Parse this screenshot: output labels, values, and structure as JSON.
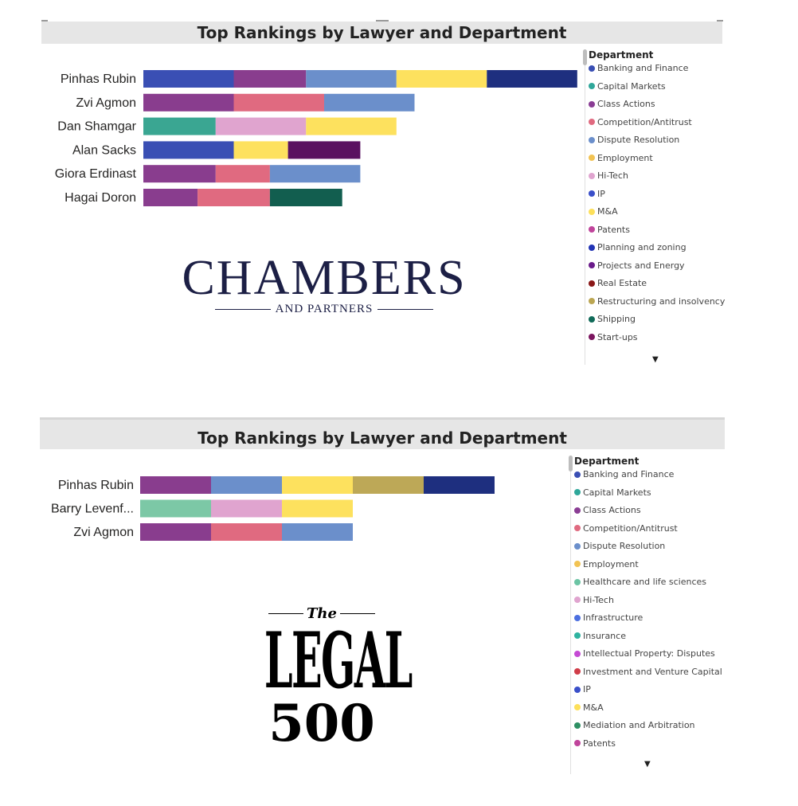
{
  "chart_data": [
    {
      "type": "bar",
      "orientation": "horizontal",
      "stacked": true,
      "title": "Top Rankings by Lawyer and Department",
      "legend_title": "Department",
      "legend_position": "right",
      "categories": [
        "Pinhas Rubin",
        "Zvi Agmon",
        "Dan Shamgar",
        "Alan Sacks",
        "Giora Erdinast",
        "Hagai Doron"
      ],
      "segments": [
        [
          {
            "dept": "Banking and Finance",
            "value": 1
          },
          {
            "dept": "Class Actions",
            "value": 0.8
          },
          {
            "dept": "Dispute Resolution",
            "value": 1
          },
          {
            "dept": "M&A",
            "value": 1
          },
          {
            "dept": "Planning and zoning",
            "value": 1
          }
        ],
        [
          {
            "dept": "Class Actions",
            "value": 1
          },
          {
            "dept": "Competition/Antitrust",
            "value": 1
          },
          {
            "dept": "Dispute Resolution",
            "value": 1
          }
        ],
        [
          {
            "dept": "Capital Markets",
            "value": 0.8
          },
          {
            "dept": "Hi-Tech",
            "value": 1
          },
          {
            "dept": "M&A",
            "value": 1
          }
        ],
        [
          {
            "dept": "Banking and Finance",
            "value": 1
          },
          {
            "dept": "M&A",
            "value": 0.6
          },
          {
            "dept": "Start-ups",
            "value": 0.8
          }
        ],
        [
          {
            "dept": "Class Actions",
            "value": 0.8
          },
          {
            "dept": "Competition/Antitrust",
            "value": 0.6
          },
          {
            "dept": "Dispute Resolution",
            "value": 1
          }
        ],
        [
          {
            "dept": "Class Actions",
            "value": 0.6
          },
          {
            "dept": "Competition/Antitrust",
            "value": 0.8
          },
          {
            "dept": "Shipping",
            "value": 0.8
          }
        ]
      ],
      "legend": [
        {
          "label": "Banking and Finance",
          "color": "#3a4fb4"
        },
        {
          "label": "Capital Markets",
          "color": "#2fa79a"
        },
        {
          "label": "Class Actions",
          "color": "#8a3d94"
        },
        {
          "label": "Competition/Antitrust",
          "color": "#e06a80"
        },
        {
          "label": "Dispute Resolution",
          "color": "#6b8fcb"
        },
        {
          "label": "Employment",
          "color": "#f2c353"
        },
        {
          "label": "Hi-Tech",
          "color": "#e0a4cf"
        },
        {
          "label": "IP",
          "color": "#3a4fc9"
        },
        {
          "label": "M&A",
          "color": "#fde05a"
        },
        {
          "label": "Patents",
          "color": "#c0449b"
        },
        {
          "label": "Planning and zoning",
          "color": "#2234b5"
        },
        {
          "label": "Projects and Energy",
          "color": "#6a1b8a"
        },
        {
          "label": "Real Estate",
          "color": "#8a1818"
        },
        {
          "label": "Restructuring and insolvency",
          "color": "#bba652"
        },
        {
          "label": "Shipping",
          "color": "#106a58"
        },
        {
          "label": "Start-ups",
          "color": "#7b155f"
        }
      ],
      "segment_colors": {
        "Planning and zoning": "#1e2f7f",
        "Start-ups": "#5a1160",
        "Capital Markets": "#3aa692",
        "Shipping": "#125e4f",
        "M&A": "#fde15e",
        "Class Actions": "#893d8e"
      }
    },
    {
      "type": "bar",
      "orientation": "horizontal",
      "stacked": true,
      "title": "Top Rankings by Lawyer and Department",
      "legend_title": "Department",
      "legend_position": "right",
      "categories": [
        "Pinhas Rubin",
        "Barry Levenf...",
        "Zvi Agmon"
      ],
      "segments": [
        [
          {
            "dept": "Class Actions",
            "value": 1
          },
          {
            "dept": "Dispute Resolution",
            "value": 1
          },
          {
            "dept": "M&A",
            "value": 1
          },
          {
            "dept": "Restructuring and insolvency",
            "value": 1
          },
          {
            "dept": "IP",
            "value": 1
          }
        ],
        [
          {
            "dept": "Healthcare and life sciences",
            "value": 1
          },
          {
            "dept": "Hi-Tech",
            "value": 1
          },
          {
            "dept": "M&A",
            "value": 1
          }
        ],
        [
          {
            "dept": "Class Actions",
            "value": 1
          },
          {
            "dept": "Competition/Antitrust",
            "value": 1
          },
          {
            "dept": "Dispute Resolution",
            "value": 1
          }
        ]
      ],
      "legend": [
        {
          "label": "Banking and Finance",
          "color": "#3a4fb4"
        },
        {
          "label": "Capital Markets",
          "color": "#2fa79a"
        },
        {
          "label": "Class Actions",
          "color": "#8a3d94"
        },
        {
          "label": "Competition/Antitrust",
          "color": "#e06a80"
        },
        {
          "label": "Dispute Resolution",
          "color": "#6b8fcb"
        },
        {
          "label": "Employment",
          "color": "#f2c353"
        },
        {
          "label": "Healthcare and life sciences",
          "color": "#6cc4a4"
        },
        {
          "label": "Hi-Tech",
          "color": "#e0a4cf"
        },
        {
          "label": "Infrastructure",
          "color": "#4c6fe0"
        },
        {
          "label": "Insurance",
          "color": "#2fb3a0"
        },
        {
          "label": "Intellectual Property: Disputes",
          "color": "#c54ad4"
        },
        {
          "label": "Investment and Venture Capital",
          "color": "#d03c48"
        },
        {
          "label": "IP",
          "color": "#3a4fc9"
        },
        {
          "label": "M&A",
          "color": "#fde05a"
        },
        {
          "label": "Mediation and  Arbitration",
          "color": "#2e8f63"
        },
        {
          "label": "Patents",
          "color": "#c0449b"
        }
      ],
      "segment_colors": {
        "IP": "#1e2f7f",
        "Restructuring and insolvency": "#bda857",
        "Healthcare and life sciences": "#7cc8a6",
        "M&A": "#fde15e",
        "Class Actions": "#893d8e"
      }
    }
  ],
  "logos": {
    "chambers_word": "CHAMBERS",
    "chambers_sub": "AND PARTNERS",
    "legal_the": "The",
    "legal_word": "LEGAL",
    "legal_num": "500"
  },
  "icons": {
    "scroll_down": "▼"
  }
}
